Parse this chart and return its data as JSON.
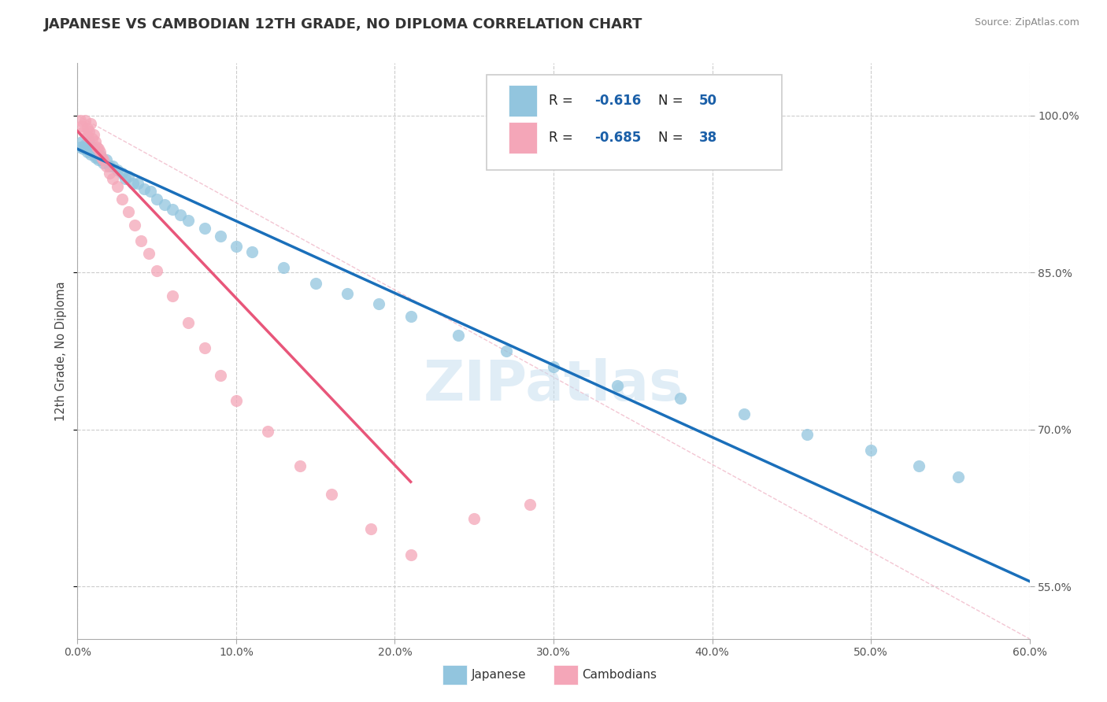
{
  "title": "JAPANESE VS CAMBODIAN 12TH GRADE, NO DIPLOMA CORRELATION CHART",
  "source_text": "Source: ZipAtlas.com",
  "ylabel_label": "12th Grade, No Diploma",
  "legend_japanese": "Japanese",
  "legend_cambodians": "Cambodians",
  "r_japanese": "-0.616",
  "n_japanese": "50",
  "r_cambodian": "-0.685",
  "n_cambodian": "38",
  "watermark_text": "ZIPatlas",
  "blue_dot_color": "#92c5de",
  "pink_dot_color": "#f4a6b8",
  "blue_line_color": "#1a6fba",
  "pink_line_color": "#e8567a",
  "diag_color": "#f0b8c8",
  "grid_color": "#cccccc",
  "xmin": 0.0,
  "xmax": 0.6,
  "ymin": 0.5,
  "ymax": 1.05,
  "ytick_vals": [
    1.0,
    0.85,
    0.7,
    0.55
  ],
  "ytick_labels": [
    "100.0%",
    "85.0%",
    "70.0%",
    "55.0%"
  ],
  "xtick_vals": [
    0.0,
    0.1,
    0.2,
    0.3,
    0.4,
    0.5,
    0.6
  ],
  "xtick_labels": [
    "0.0%",
    "10.0%",
    "20.0%",
    "30.0%",
    "40.0%",
    "50.0%",
    "60.0%"
  ],
  "jap_x": [
    0.002,
    0.003,
    0.004,
    0.005,
    0.006,
    0.007,
    0.008,
    0.009,
    0.01,
    0.011,
    0.012,
    0.013,
    0.014,
    0.015,
    0.016,
    0.018,
    0.02,
    0.022,
    0.025,
    0.028,
    0.03,
    0.032,
    0.035,
    0.038,
    0.042,
    0.046,
    0.05,
    0.055,
    0.06,
    0.065,
    0.07,
    0.08,
    0.09,
    0.1,
    0.11,
    0.13,
    0.15,
    0.17,
    0.19,
    0.21,
    0.24,
    0.27,
    0.3,
    0.34,
    0.38,
    0.42,
    0.46,
    0.5,
    0.53,
    0.555
  ],
  "jap_y": [
    0.97,
    0.975,
    0.968,
    0.972,
    0.965,
    0.975,
    0.963,
    0.97,
    0.968,
    0.96,
    0.96,
    0.958,
    0.962,
    0.958,
    0.955,
    0.958,
    0.952,
    0.952,
    0.948,
    0.945,
    0.94,
    0.942,
    0.935,
    0.935,
    0.93,
    0.928,
    0.92,
    0.915,
    0.91,
    0.905,
    0.9,
    0.892,
    0.885,
    0.875,
    0.87,
    0.855,
    0.84,
    0.83,
    0.82,
    0.808,
    0.79,
    0.775,
    0.76,
    0.742,
    0.73,
    0.715,
    0.695,
    0.68,
    0.665,
    0.655
  ],
  "cam_x": [
    0.002,
    0.003,
    0.004,
    0.005,
    0.006,
    0.006,
    0.007,
    0.008,
    0.009,
    0.01,
    0.011,
    0.012,
    0.013,
    0.014,
    0.015,
    0.016,
    0.018,
    0.02,
    0.022,
    0.025,
    0.028,
    0.032,
    0.036,
    0.04,
    0.045,
    0.05,
    0.06,
    0.07,
    0.08,
    0.09,
    0.1,
    0.12,
    0.14,
    0.16,
    0.185,
    0.21,
    0.25,
    0.285
  ],
  "cam_y": [
    0.995,
    0.99,
    0.985,
    0.995,
    0.988,
    0.98,
    0.985,
    0.992,
    0.978,
    0.982,
    0.975,
    0.97,
    0.968,
    0.965,
    0.96,
    0.958,
    0.952,
    0.945,
    0.94,
    0.932,
    0.92,
    0.908,
    0.895,
    0.88,
    0.868,
    0.852,
    0.828,
    0.802,
    0.778,
    0.752,
    0.728,
    0.698,
    0.665,
    0.638,
    0.605,
    0.58,
    0.615,
    0.628
  ],
  "blue_line_x": [
    0.002,
    0.555
  ],
  "blue_line_y": [
    0.968,
    0.595
  ],
  "pink_line_x": [
    0.002,
    0.21
  ],
  "pink_line_y": [
    0.985,
    0.65
  ]
}
